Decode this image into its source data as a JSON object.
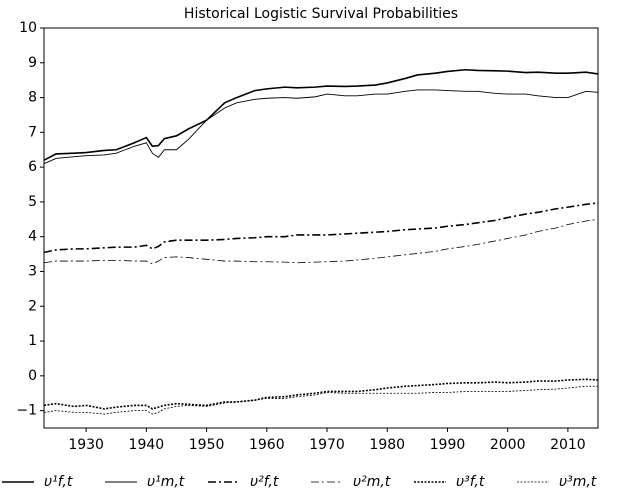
{
  "chart_data": {
    "type": "line",
    "title": "Historical Logistic Survival Probabilities",
    "x": [
      1923,
      1925,
      1928,
      1930,
      1933,
      1935,
      1938,
      1940,
      1941,
      1942,
      1943,
      1945,
      1947,
      1950,
      1953,
      1955,
      1958,
      1960,
      1963,
      1965,
      1968,
      1970,
      1973,
      1975,
      1978,
      1980,
      1983,
      1985,
      1988,
      1990,
      1993,
      1995,
      1998,
      2000,
      2003,
      2005,
      2008,
      2010,
      2013,
      2015
    ],
    "series": [
      {
        "name": "υ¹f,t",
        "color": "#000000",
        "linewidth": 1.6,
        "linestyle": "solid",
        "values": [
          6.2,
          6.38,
          6.4,
          6.42,
          6.48,
          6.5,
          6.7,
          6.85,
          6.6,
          6.62,
          6.82,
          6.9,
          7.1,
          7.35,
          7.85,
          8.0,
          8.2,
          8.25,
          8.3,
          8.28,
          8.3,
          8.33,
          8.32,
          8.33,
          8.36,
          8.42,
          8.55,
          8.65,
          8.7,
          8.75,
          8.8,
          8.78,
          8.77,
          8.76,
          8.72,
          8.73,
          8.7,
          8.7,
          8.73,
          8.68
        ]
      },
      {
        "name": "υ¹m,t",
        "color": "#000000",
        "linewidth": 0.9,
        "linestyle": "solid",
        "values": [
          6.1,
          6.25,
          6.3,
          6.33,
          6.35,
          6.4,
          6.6,
          6.7,
          6.4,
          6.28,
          6.5,
          6.5,
          6.8,
          7.35,
          7.7,
          7.85,
          7.95,
          7.98,
          8.0,
          7.98,
          8.02,
          8.1,
          8.05,
          8.05,
          8.1,
          8.1,
          8.18,
          8.22,
          8.22,
          8.2,
          8.18,
          8.18,
          8.12,
          8.1,
          8.1,
          8.05,
          8.0,
          8.0,
          8.18,
          8.15
        ]
      },
      {
        "name": "υ²f,t",
        "color": "#000000",
        "linewidth": 1.6,
        "linestyle": "dashdot",
        "values": [
          3.55,
          3.62,
          3.65,
          3.65,
          3.68,
          3.7,
          3.7,
          3.75,
          3.65,
          3.72,
          3.85,
          3.9,
          3.9,
          3.9,
          3.92,
          3.95,
          3.97,
          4.0,
          4.0,
          4.05,
          4.05,
          4.05,
          4.08,
          4.1,
          4.13,
          4.15,
          4.2,
          4.22,
          4.25,
          4.3,
          4.35,
          4.4,
          4.47,
          4.55,
          4.65,
          4.7,
          4.8,
          4.85,
          4.93,
          4.97
        ]
      },
      {
        "name": "υ²m,t",
        "color": "#000000",
        "linewidth": 0.8,
        "linestyle": "dashdot",
        "values": [
          3.25,
          3.3,
          3.3,
          3.3,
          3.32,
          3.32,
          3.3,
          3.3,
          3.22,
          3.3,
          3.4,
          3.42,
          3.4,
          3.35,
          3.3,
          3.3,
          3.28,
          3.28,
          3.27,
          3.25,
          3.27,
          3.28,
          3.3,
          3.33,
          3.38,
          3.42,
          3.48,
          3.52,
          3.58,
          3.65,
          3.72,
          3.78,
          3.88,
          3.95,
          4.05,
          4.15,
          4.25,
          4.35,
          4.45,
          4.5
        ]
      },
      {
        "name": "υ³f,t",
        "color": "#000000",
        "linewidth": 1.6,
        "linestyle": "dotted",
        "values": [
          -0.85,
          -0.8,
          -0.88,
          -0.85,
          -0.95,
          -0.9,
          -0.85,
          -0.85,
          -0.95,
          -0.9,
          -0.85,
          -0.8,
          -0.82,
          -0.85,
          -0.75,
          -0.75,
          -0.7,
          -0.62,
          -0.6,
          -0.55,
          -0.5,
          -0.45,
          -0.45,
          -0.45,
          -0.4,
          -0.35,
          -0.3,
          -0.28,
          -0.25,
          -0.22,
          -0.2,
          -0.2,
          -0.18,
          -0.2,
          -0.18,
          -0.15,
          -0.15,
          -0.12,
          -0.1,
          -0.12
        ]
      },
      {
        "name": "υ³m,t",
        "color": "#000000",
        "linewidth": 0.8,
        "linestyle": "dotted",
        "values": [
          -1.05,
          -1.0,
          -1.05,
          -1.05,
          -1.1,
          -1.05,
          -1.0,
          -1.0,
          -1.1,
          -1.05,
          -0.95,
          -0.88,
          -0.85,
          -0.88,
          -0.78,
          -0.75,
          -0.7,
          -0.65,
          -0.65,
          -0.6,
          -0.55,
          -0.48,
          -0.5,
          -0.5,
          -0.5,
          -0.5,
          -0.5,
          -0.5,
          -0.48,
          -0.48,
          -0.45,
          -0.45,
          -0.45,
          -0.45,
          -0.42,
          -0.4,
          -0.38,
          -0.35,
          -0.3,
          -0.3
        ]
      }
    ],
    "xlim": [
      1923,
      2015
    ],
    "xticks": [
      1930,
      1940,
      1950,
      1960,
      1970,
      1980,
      1990,
      2000,
      2010
    ],
    "ylim": [
      -1.5,
      10
    ],
    "yticks": [
      {
        "value": -1,
        "label": "−1"
      },
      0,
      1,
      2,
      3,
      4,
      5,
      6,
      7,
      8,
      9,
      10
    ],
    "grid": false,
    "legend": "bottom"
  }
}
